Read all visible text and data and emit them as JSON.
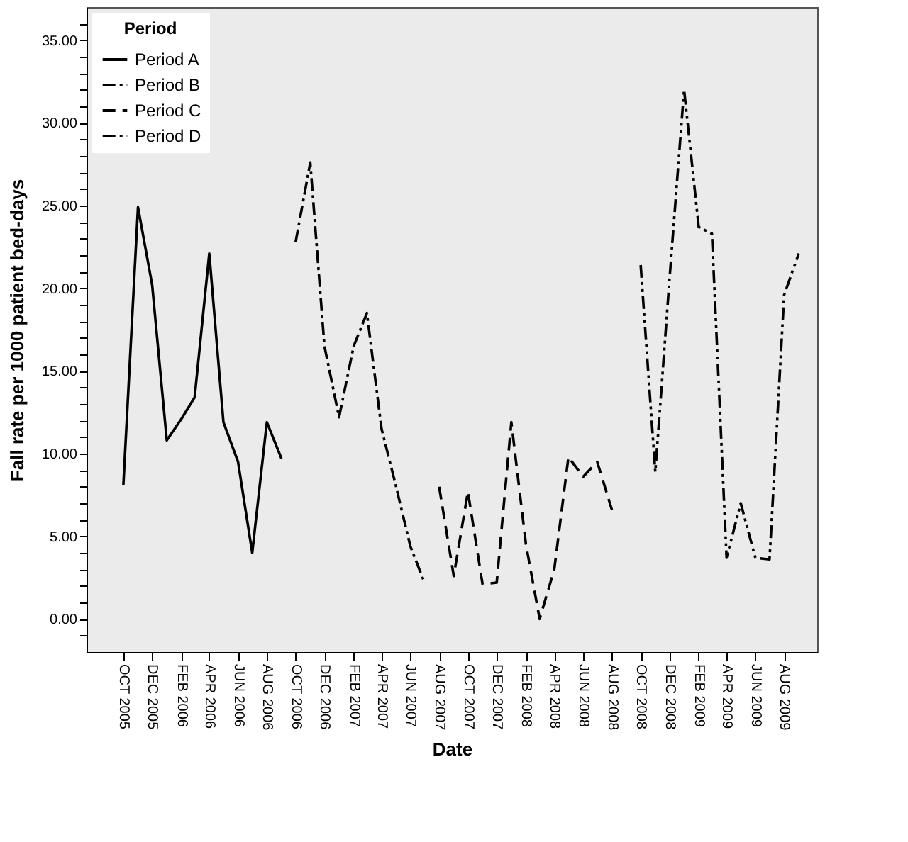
{
  "chart_data": {
    "type": "line",
    "xlabel": "Date",
    "ylabel": "Fall rate per 1000 patient bed-days",
    "legend_title": "Period",
    "series": [
      {
        "name": "Period A",
        "color": "#000000",
        "line_style": "solid",
        "x": [
          "2005-10",
          "2005-11",
          "2005-12",
          "2006-01",
          "2006-02",
          "2006-03",
          "2006-04",
          "2006-05",
          "2006-06",
          "2006-07",
          "2006-08",
          "2006-09"
        ],
        "values": [
          8.1,
          24.9,
          20.2,
          10.8,
          12.1,
          13.4,
          22.1,
          11.9,
          9.5,
          4.0,
          11.9,
          9.7
        ]
      },
      {
        "name": "Period B",
        "color": "#000000",
        "line_style": "dashdot",
        "x": [
          "2006-10",
          "2006-11",
          "2006-12",
          "2007-01",
          "2007-02",
          "2007-03",
          "2007-04",
          "2007-05",
          "2007-06",
          "2007-07"
        ],
        "values": [
          22.8,
          27.6,
          16.5,
          12.2,
          16.5,
          18.5,
          11.5,
          8.1,
          4.4,
          2.2
        ]
      },
      {
        "name": "Period C",
        "color": "#000000",
        "line_style": "dashed",
        "x": [
          "2007-08",
          "2007-09",
          "2007-10",
          "2007-11",
          "2007-12",
          "2008-01",
          "2008-02",
          "2008-03",
          "2008-04",
          "2008-05",
          "2008-06",
          "2008-07",
          "2008-08"
        ],
        "values": [
          8.0,
          2.6,
          7.7,
          2.1,
          2.2,
          11.9,
          4.5,
          0.0,
          3.0,
          9.8,
          8.6,
          9.5,
          6.6
        ]
      },
      {
        "name": "Period D",
        "color": "#000000",
        "line_style": "dashdotdot",
        "x": [
          "2008-10",
          "2008-11",
          "2008-12",
          "2009-01",
          "2009-02",
          "2009-03",
          "2009-04",
          "2009-05",
          "2009-06",
          "2009-07",
          "2009-08",
          "2009-09"
        ],
        "values": [
          21.4,
          8.9,
          20.5,
          32.0,
          23.7,
          23.3,
          3.7,
          7.0,
          3.7,
          3.6,
          19.6,
          22.1
        ]
      }
    ],
    "xlim": [
      "2005-07-15",
      "2009-10-10"
    ],
    "xticks": [
      {
        "value": "2005-10",
        "label": "OCT 2005"
      },
      {
        "value": "2005-12",
        "label": "DEC 2005"
      },
      {
        "value": "2006-02",
        "label": "FEB 2006"
      },
      {
        "value": "2006-04",
        "label": "APR 2006"
      },
      {
        "value": "2006-06",
        "label": "JUN 2006"
      },
      {
        "value": "2006-08",
        "label": "AUG 2006"
      },
      {
        "value": "2006-10",
        "label": "OCT 2006"
      },
      {
        "value": "2006-12",
        "label": "DEC 2006"
      },
      {
        "value": "2007-02",
        "label": "FEB 2007"
      },
      {
        "value": "2007-04",
        "label": "APR 2007"
      },
      {
        "value": "2007-06",
        "label": "JUN 2007"
      },
      {
        "value": "2007-08",
        "label": "AUG 2007"
      },
      {
        "value": "2007-10",
        "label": "OCT 2007"
      },
      {
        "value": "2007-12",
        "label": "DEC 2007"
      },
      {
        "value": "2008-02",
        "label": "FEB 2008"
      },
      {
        "value": "2008-04",
        "label": "APR 2008"
      },
      {
        "value": "2008-06",
        "label": "JUN 2008"
      },
      {
        "value": "2008-08",
        "label": "AUG 2008"
      },
      {
        "value": "2008-10",
        "label": "OCT 2008"
      },
      {
        "value": "2008-12",
        "label": "DEC 2008"
      },
      {
        "value": "2009-02",
        "label": "FEB 2009"
      },
      {
        "value": "2009-04",
        "label": "APR 2009"
      },
      {
        "value": "2009-06",
        "label": "JUN 2009"
      },
      {
        "value": "2009-08",
        "label": "AUG 2009"
      }
    ],
    "ylim": [
      -2,
      37
    ],
    "yticks": [
      {
        "value": -1,
        "label": null
      },
      {
        "value": 0,
        "label": "0.00"
      },
      {
        "value": 1,
        "label": null
      },
      {
        "value": 2,
        "label": null
      },
      {
        "value": 3,
        "label": null
      },
      {
        "value": 4,
        "label": null
      },
      {
        "value": 5,
        "label": "5.00"
      },
      {
        "value": 6,
        "label": null
      },
      {
        "value": 7,
        "label": null
      },
      {
        "value": 8,
        "label": null
      },
      {
        "value": 9,
        "label": null
      },
      {
        "value": 10,
        "label": "10.00"
      },
      {
        "value": 11,
        "label": null
      },
      {
        "value": 12,
        "label": null
      },
      {
        "value": 13,
        "label": null
      },
      {
        "value": 14,
        "label": null
      },
      {
        "value": 15,
        "label": "15.00"
      },
      {
        "value": 16,
        "label": null
      },
      {
        "value": 17,
        "label": null
      },
      {
        "value": 18,
        "label": null
      },
      {
        "value": 19,
        "label": null
      },
      {
        "value": 20,
        "label": "20.00"
      },
      {
        "value": 21,
        "label": null
      },
      {
        "value": 22,
        "label": null
      },
      {
        "value": 23,
        "label": null
      },
      {
        "value": 24,
        "label": null
      },
      {
        "value": 25,
        "label": "25.00"
      },
      {
        "value": 26,
        "label": null
      },
      {
        "value": 27,
        "label": null
      },
      {
        "value": 28,
        "label": null
      },
      {
        "value": 29,
        "label": null
      },
      {
        "value": 30,
        "label": "30.00"
      },
      {
        "value": 31,
        "label": null
      },
      {
        "value": 32,
        "label": null
      },
      {
        "value": 33,
        "label": null
      },
      {
        "value": 34,
        "label": null
      },
      {
        "value": 35,
        "label": "35.00"
      },
      {
        "value": 36,
        "label": null
      }
    ],
    "grid": false,
    "legend": "top left"
  }
}
